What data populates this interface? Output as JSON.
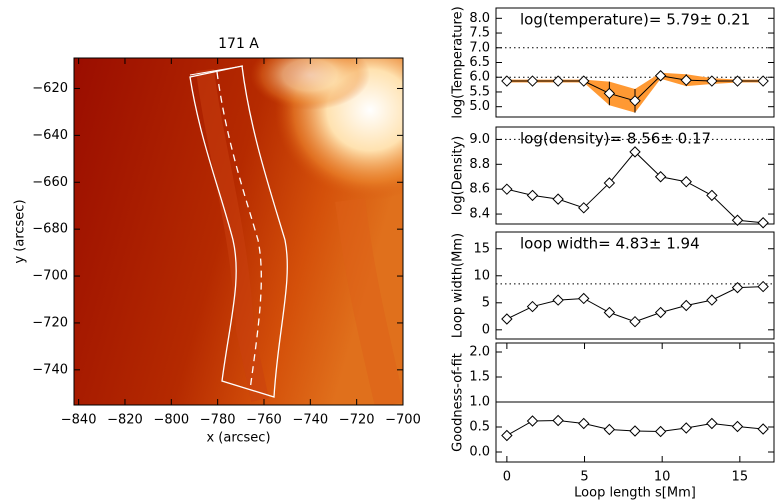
{
  "chart_data": [
    {
      "type": "image",
      "title": "171 A",
      "xlabel": "x (arcsec)",
      "ylabel": "y (arcsec)",
      "xlim": [
        -842,
        -700
      ],
      "ylim": [
        -755,
        -607
      ],
      "xticks": [
        {
          "value": -840,
          "label": "−840"
        },
        {
          "value": -820,
          "label": "−820"
        },
        {
          "value": -800,
          "label": "−800"
        },
        {
          "value": -780,
          "label": "−780"
        },
        {
          "value": -760,
          "label": "−760"
        },
        {
          "value": -740,
          "label": "−740"
        },
        {
          "value": -720,
          "label": "−720"
        },
        {
          "value": -700,
          "label": "−700"
        }
      ],
      "yticks": [
        {
          "value": -620,
          "label": "−620"
        },
        {
          "value": -640,
          "label": "−640"
        },
        {
          "value": -660,
          "label": "−660"
        },
        {
          "value": -680,
          "label": "−680"
        },
        {
          "value": -700,
          "label": "−700"
        },
        {
          "value": -720,
          "label": "−720"
        },
        {
          "value": -740,
          "label": "−740"
        }
      ]
    },
    {
      "type": "line",
      "ylabel": "log(Temperature)",
      "annotation": "log(temperature)= 5.79± 0.21",
      "xlim": [
        -0.7,
        17.2
      ],
      "ylim": [
        4.65,
        8.35
      ],
      "yticks": [
        {
          "value": 5.0,
          "label": "5.0"
        },
        5.5,
        {
          "value": 6.0,
          "label": "6.0"
        },
        6.5,
        {
          "value": 7.0,
          "label": "7.0"
        },
        7.5,
        {
          "value": 8.0,
          "label": "8.0"
        }
      ],
      "reference_lines": [
        7.0,
        6.0
      ],
      "reference_style": "dotted",
      "band_color": "#ff9933",
      "x": [
        0,
        1.65,
        3.3,
        4.95,
        6.6,
        8.25,
        9.9,
        11.55,
        13.2,
        14.85,
        16.5
      ],
      "series": [
        {
          "color": "#000000",
          "values": [
            5.87,
            5.87,
            5.87,
            5.87,
            5.45,
            5.2,
            6.05,
            5.9,
            5.87,
            5.87,
            5.87
          ],
          "errors": [
            0.05,
            0.05,
            0.05,
            0.05,
            0.4,
            0.4,
            0.1,
            0.2,
            0.1,
            0.05,
            0.05
          ]
        }
      ]
    },
    {
      "type": "line",
      "ylabel": "log(Density)",
      "annotation": "log(density)= 8.56± 0.17",
      "xlim": [
        -0.7,
        17.2
      ],
      "ylim": [
        8.32,
        9.1
      ],
      "yticks": [
        8.4,
        8.6,
        8.8,
        {
          "value": 9.0,
          "label": "9.0"
        }
      ],
      "reference_lines": [
        9.0
      ],
      "reference_style": "dotted",
      "x": [
        0,
        1.65,
        3.3,
        4.95,
        6.6,
        8.25,
        9.9,
        11.55,
        13.2,
        14.85,
        16.5
      ],
      "series": [
        {
          "color": "#000000",
          "values": [
            8.6,
            8.55,
            8.52,
            8.45,
            8.65,
            8.9,
            8.7,
            8.66,
            8.55,
            8.35,
            8.33
          ]
        }
      ]
    },
    {
      "type": "line",
      "ylabel": "Loop width(Mm)",
      "annotation": "loop width= 4.83± 1.94",
      "xlim": [
        -0.7,
        17.2
      ],
      "ylim": [
        -1.7,
        18.1
      ],
      "yticks": [
        0,
        5,
        10,
        15
      ],
      "reference_lines": [
        8.5
      ],
      "reference_style": "dotted",
      "x": [
        0,
        1.65,
        3.3,
        4.95,
        6.6,
        8.25,
        9.9,
        11.55,
        13.2,
        14.85,
        16.5
      ],
      "series": [
        {
          "color": "#000000",
          "values": [
            2,
            4.3,
            5.5,
            5.8,
            3.2,
            1.5,
            3.2,
            4.5,
            5.5,
            7.8,
            8
          ]
        }
      ]
    },
    {
      "type": "line",
      "ylabel": "Goodness-of-fit",
      "xlabel": "Loop length s[Mm]",
      "xlim": [
        -0.7,
        17.2
      ],
      "ylim": [
        -0.2,
        2.18
      ],
      "xticks": [
        0,
        5,
        10,
        15
      ],
      "yticks": [
        {
          "value": 0.0,
          "label": "0.0"
        },
        0.5,
        {
          "value": 1.0,
          "label": "1.0"
        },
        1.5,
        {
          "value": 2.0,
          "label": "2.0"
        }
      ],
      "reference_lines": [
        1.0
      ],
      "reference_style": "solid",
      "x": [
        0,
        1.65,
        3.3,
        4.95,
        6.6,
        8.25,
        9.9,
        11.55,
        13.2,
        14.85,
        16.5
      ],
      "series": [
        {
          "color": "#000000",
          "values": [
            0.33,
            0.62,
            0.63,
            0.57,
            0.45,
            0.42,
            0.41,
            0.48,
            0.57,
            0.51,
            0.46
          ]
        }
      ]
    }
  ]
}
